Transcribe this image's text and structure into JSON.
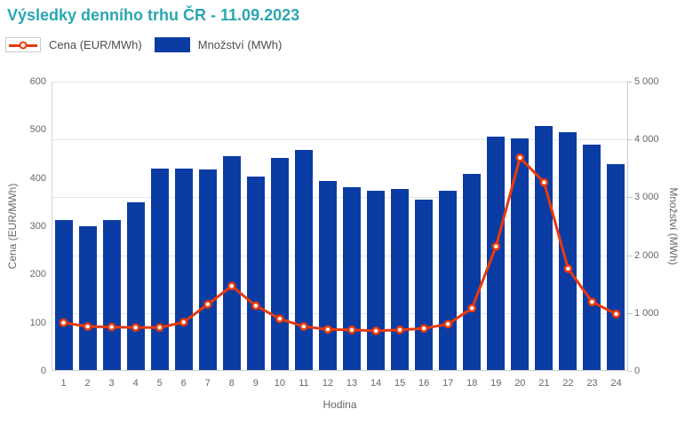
{
  "header": {
    "title": "Výsledky denního trhu ČR - 11.09.2023",
    "title_color": "#2aa6b2"
  },
  "legend": [
    {
      "id": "price",
      "label": "Cena (EUR/MWh)",
      "swatch": "line-marker",
      "color": "#e8390c"
    },
    {
      "id": "volume",
      "label": "Množství (MWh)",
      "swatch": "box",
      "color": "#0b3ca3"
    }
  ],
  "chart_data": {
    "type": "combo-bar-line",
    "title": "Výsledky denního trhu ČR - 11.09.2023",
    "categories": [
      1,
      2,
      3,
      4,
      5,
      6,
      7,
      8,
      9,
      10,
      11,
      12,
      13,
      14,
      15,
      16,
      17,
      18,
      19,
      20,
      21,
      22,
      23,
      24
    ],
    "xlabel": "Hodina",
    "series": [
      {
        "name": "Cena (EUR/MWh)",
        "type": "line",
        "axis": "left",
        "color": "#e8390c",
        "marker": "circle-white-fill",
        "values": [
          100,
          92,
          91,
          90,
          90,
          101,
          138,
          176,
          135,
          108,
          92,
          86,
          85,
          83,
          85,
          88,
          97,
          130,
          258,
          442,
          391,
          212,
          143,
          118
        ]
      },
      {
        "name": "Množství (MWh)",
        "type": "bar",
        "axis": "right",
        "color": "#0b3ca3",
        "values": [
          2610,
          2500,
          2610,
          2910,
          3495,
          3495,
          3475,
          3705,
          3365,
          3680,
          3820,
          3290,
          3175,
          3110,
          3145,
          2955,
          3110,
          3405,
          4050,
          4020,
          4235,
          4125,
          3905,
          3580
        ]
      }
    ],
    "axes": {
      "left": {
        "title": "Cena (EUR/MWh)",
        "min": 0,
        "max": 600,
        "ticks": [
          {
            "v": 0,
            "label": "0"
          },
          {
            "v": 100,
            "label": "100"
          },
          {
            "v": 200,
            "label": "200"
          },
          {
            "v": 300,
            "label": "300"
          },
          {
            "v": 400,
            "label": "400"
          },
          {
            "v": 500,
            "label": "500"
          },
          {
            "v": 600,
            "label": "600"
          }
        ]
      },
      "right": {
        "title": "Množství (MWh)",
        "min": 0,
        "max": 5000,
        "ticks": [
          {
            "v": 0,
            "label": "0"
          },
          {
            "v": 1000,
            "label": "1 000"
          },
          {
            "v": 2000,
            "label": "2 000"
          },
          {
            "v": 3000,
            "label": "3 000"
          },
          {
            "v": 4000,
            "label": "4 000"
          },
          {
            "v": 5000,
            "label": "5 000"
          }
        ]
      }
    },
    "grid": "horizontal-on-right-axis-ticks",
    "legend_position": "top-left",
    "colors": {
      "grid": "#e5e5e5",
      "axis": "#c9c9c9",
      "tick_text": "#666666"
    }
  }
}
